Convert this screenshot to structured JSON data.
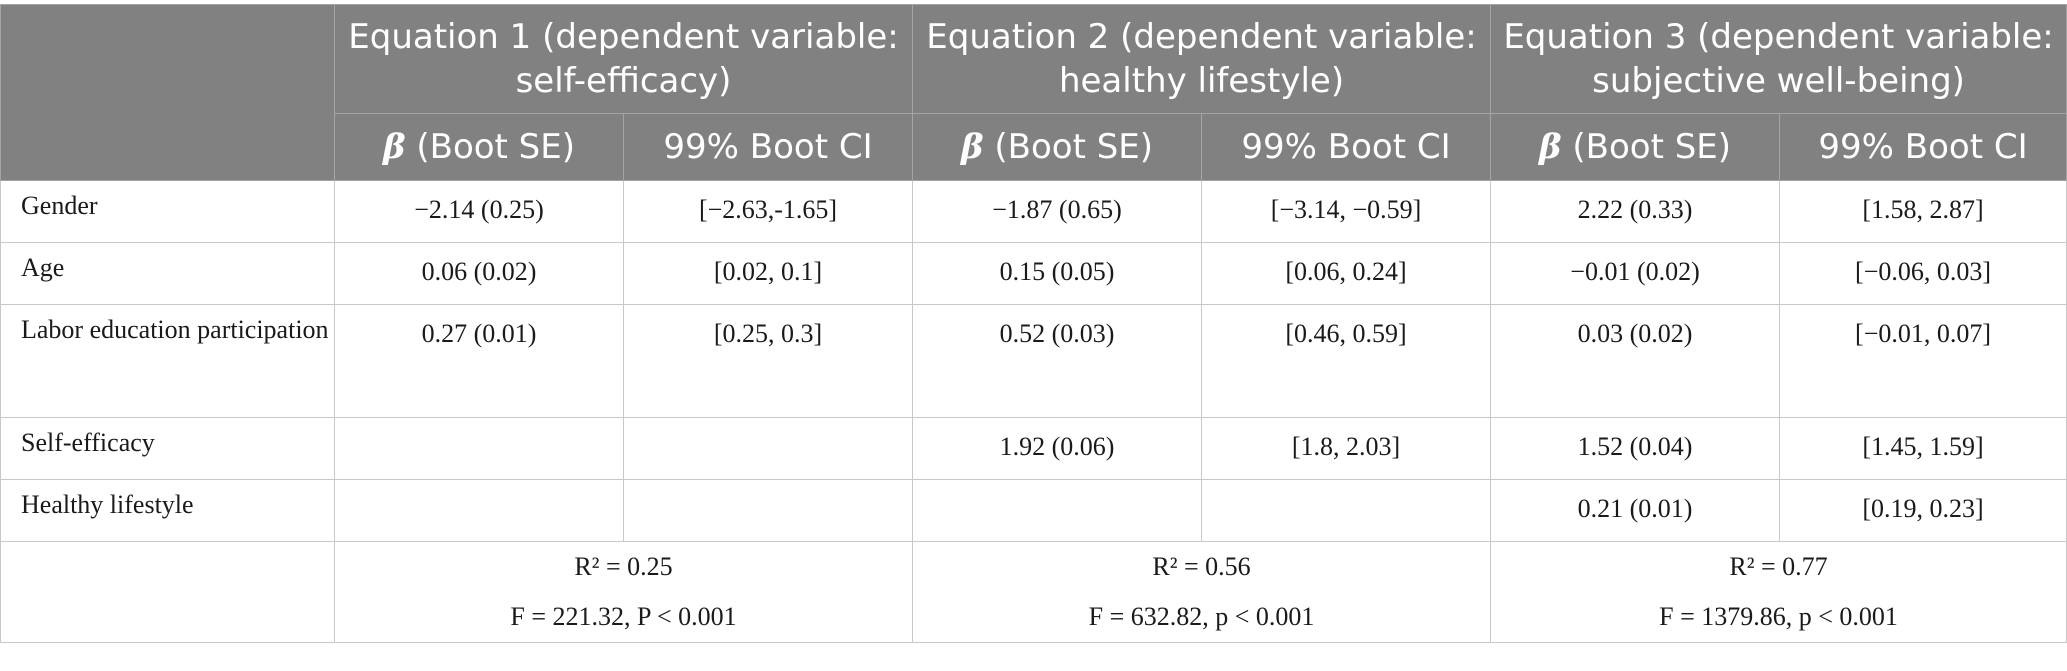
{
  "header": {
    "equations": [
      "Equation 1 (dependent variable: self-efficacy)",
      "Equation 2 (dependent variable: healthy lifestyle)",
      "Equation 3 (dependent variable: subjective well-being)"
    ],
    "beta_symbol": "β",
    "beta_suffix": " (Boot SE)",
    "ci_label": "99% Boot CI"
  },
  "rows": [
    {
      "label": "Gender",
      "cells": [
        "−2.14 (0.25)",
        "[−2.63,-1.65]",
        "−1.87 (0.65)",
        "[−3.14, −0.59]",
        "2.22 (0.33)",
        "[1.58, 2.87]"
      ]
    },
    {
      "label": "Age",
      "cells": [
        "0.06 (0.02)",
        "[0.02, 0.1]",
        "0.15 (0.05)",
        "[0.06, 0.24]",
        "−0.01 (0.02)",
        "[−0.06, 0.03]"
      ]
    },
    {
      "label": "Labor education participation",
      "cells": [
        "0.27 (0.01)",
        "[0.25, 0.3]",
        "0.52 (0.03)",
        "[0.46, 0.59]",
        "0.03 (0.02)",
        "[−0.01, 0.07]"
      ]
    },
    {
      "label": "Self-efficacy",
      "cells": [
        "",
        "",
        "1.92 (0.06)",
        "[1.8, 2.03]",
        "1.52 (0.04)",
        "[1.45, 1.59]"
      ]
    },
    {
      "label": "Healthy lifestyle",
      "cells": [
        "",
        "",
        "",
        "",
        "0.21 (0.01)",
        "[0.19, 0.23]"
      ]
    }
  ],
  "stats": [
    {
      "r2": "R² = 0.25",
      "f": "F = 221.32, P < 0.001"
    },
    {
      "r2": "R² = 0.56",
      "f": "F = 632.82, p < 0.001"
    },
    {
      "r2": "R² = 0.77",
      "f": "F = 1379.86, p < 0.001"
    }
  ]
}
